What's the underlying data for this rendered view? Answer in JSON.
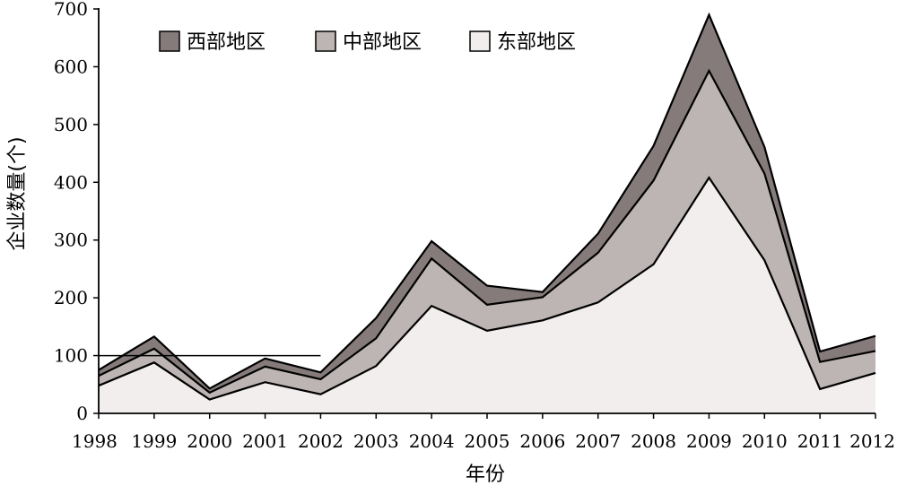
{
  "chart_data": {
    "type": "area",
    "stacked": true,
    "x": [
      "1998",
      "1999",
      "2000",
      "2001",
      "2002",
      "2003",
      "2004",
      "2005",
      "2006",
      "2007",
      "2008",
      "2009",
      "2010",
      "2011",
      "2012"
    ],
    "series": [
      {
        "name": "东部地区",
        "color": "#f2eeee",
        "values": [
          48,
          88,
          24,
          54,
          33,
          82,
          186,
          143,
          161,
          192,
          258,
          408,
          265,
          42,
          70
        ]
      },
      {
        "name": "中部地区",
        "color": "#bdb5b3",
        "values": [
          17,
          24,
          12,
          27,
          26,
          48,
          82,
          45,
          40,
          86,
          145,
          185,
          150,
          47,
          38
        ]
      },
      {
        "name": "西部地区",
        "color": "#857b7b",
        "values": [
          10,
          21,
          7,
          14,
          12,
          35,
          30,
          33,
          9,
          33,
          60,
          97,
          46,
          18,
          26
        ]
      }
    ],
    "xlabel": "年份",
    "ylabel": "企业数量(个)",
    "ylim": [
      0,
      700
    ],
    "yticks": [
      0,
      100,
      200,
      300,
      400,
      500,
      600,
      700
    ],
    "legend_position": "top-left",
    "reference_line": {
      "y": 100,
      "x_from": "1998",
      "x_to": "2002"
    }
  }
}
